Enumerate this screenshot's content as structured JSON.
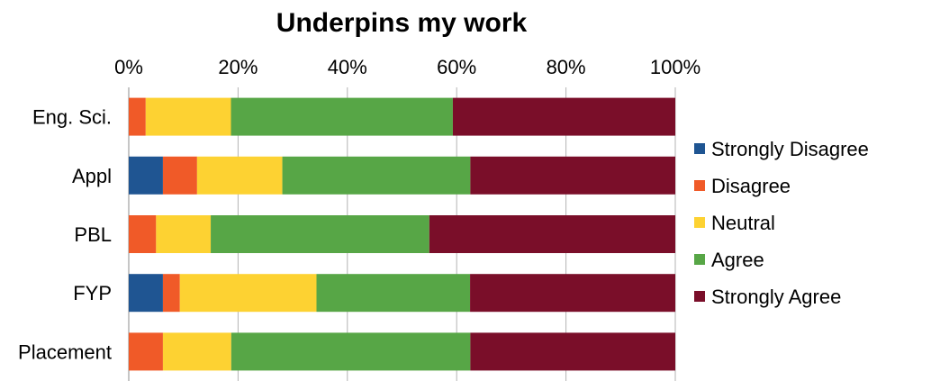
{
  "chart_data": {
    "type": "bar",
    "orientation": "horizontal",
    "stacked": true,
    "normalized": true,
    "title": "Underpins my work",
    "xlabel": "",
    "ylabel": "",
    "xlim": [
      0,
      100
    ],
    "x_ticks": [
      "0%",
      "20%",
      "40%",
      "60%",
      "80%",
      "100%"
    ],
    "x_axis_position": "top",
    "grid": true,
    "legend_position": "right",
    "categories": [
      "Eng. Sci.",
      "Appl",
      "PBL",
      "FYP",
      "Placement"
    ],
    "series": [
      {
        "name": "Strongly Disagree",
        "color": "#1f5592",
        "values": [
          0,
          6.25,
          0,
          6.25,
          0
        ]
      },
      {
        "name": "Disagree",
        "color": "#f05a28",
        "values": [
          3.1,
          6.25,
          5,
          3.1,
          6.25
        ]
      },
      {
        "name": "Neutral",
        "color": "#fdd232",
        "values": [
          15.6,
          15.6,
          10,
          25,
          12.5
        ]
      },
      {
        "name": "Agree",
        "color": "#57a646",
        "values": [
          40.6,
          34.4,
          40,
          28.1,
          43.75
        ]
      },
      {
        "name": "Strongly Agree",
        "color": "#7a0e29",
        "values": [
          40.7,
          37.5,
          45,
          37.55,
          37.5
        ]
      }
    ]
  }
}
